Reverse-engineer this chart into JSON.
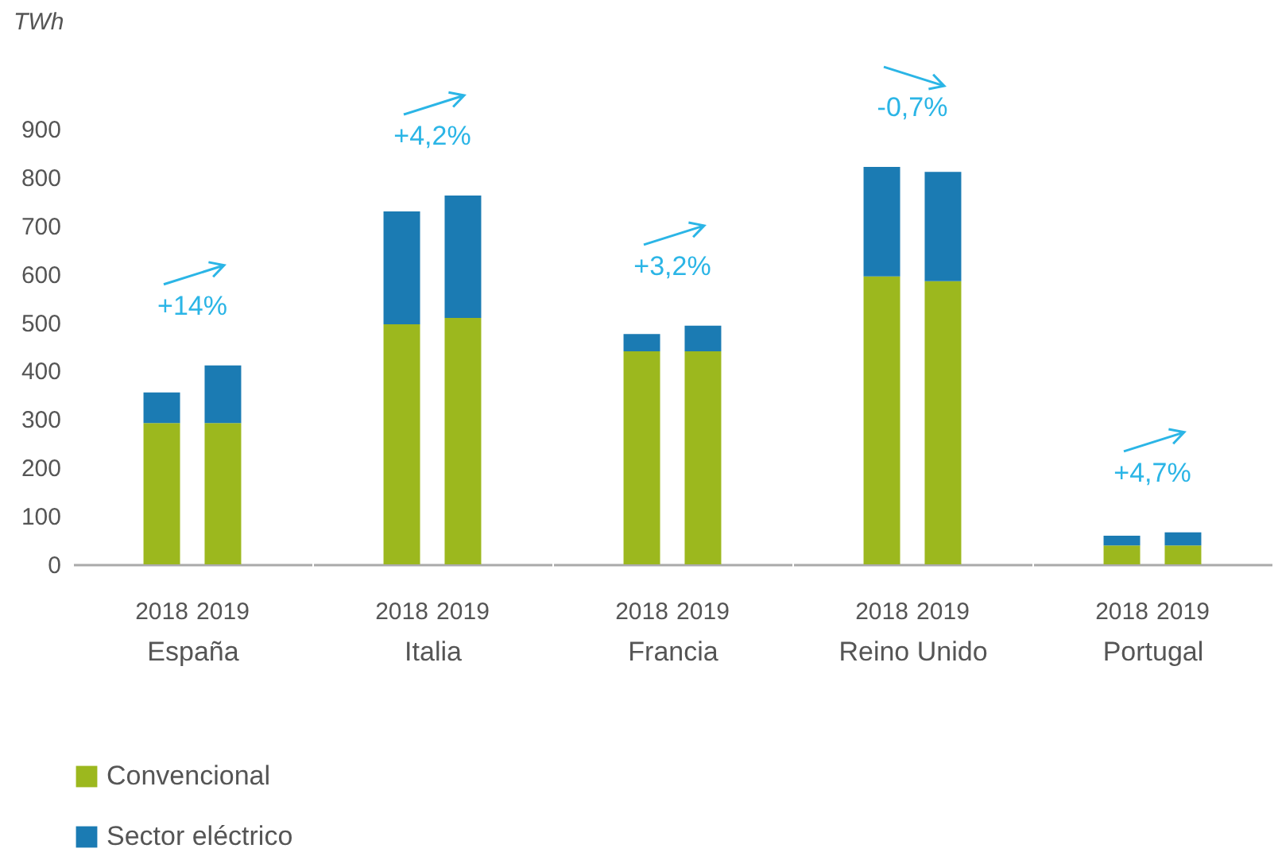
{
  "chart_data": [
    {
      "type": "bar",
      "stacked": true,
      "ylabel": "TWh",
      "xlabel": "España",
      "categories": [
        "2018",
        "2019"
      ],
      "ylim": [
        0,
        900
      ],
      "yticks": [
        0,
        100,
        200,
        300,
        400,
        500,
        600,
        700,
        800,
        900
      ],
      "legend": "bottom left",
      "annotations": [
        "+14%"
      ],
      "series": [
        {
          "name": "Convencional",
          "color": "#9cb81e",
          "values": [
            292,
            292
          ]
        },
        {
          "name": "Sector eléctrico",
          "color": "#1b7bb3",
          "values": [
            63,
            119
          ]
        }
      ]
    },
    {
      "type": "bar",
      "stacked": true,
      "xlabel": "Italia",
      "categories": [
        "2018",
        "2019"
      ],
      "ylim": [
        0,
        900
      ],
      "yticks": [
        0,
        100,
        200,
        300,
        400,
        500,
        600,
        700,
        800,
        900
      ],
      "tick_labels": "x",
      "legend": "bottom left",
      "annotations": [
        "+4,2%"
      ],
      "series": [
        {
          "name": "Convencional",
          "color": "#9cb81e",
          "values": [
            496,
            509
          ]
        },
        {
          "name": "Sector eléctrico",
          "color": "#1b7bb3",
          "values": [
            233,
            253
          ]
        }
      ]
    },
    {
      "type": "bar",
      "stacked": true,
      "xlabel": "Francia",
      "categories": [
        "2018",
        "2019"
      ],
      "ylim": [
        0,
        900
      ],
      "yticks": [
        0,
        100,
        200,
        300,
        400,
        500,
        600,
        700,
        800,
        900
      ],
      "tick_labels": "x",
      "legend": "bottom left",
      "annotations": [
        "+3,2%"
      ],
      "series": [
        {
          "name": "Convencional",
          "color": "#9cb81e",
          "values": [
            440,
            440
          ]
        },
        {
          "name": "Sector eléctrico",
          "color": "#1b7bb3",
          "values": [
            36,
            53
          ]
        }
      ]
    },
    {
      "type": "bar",
      "stacked": true,
      "xlabel": "Reino Unido",
      "categories": [
        "2018",
        "2019"
      ],
      "ylim": [
        0,
        900
      ],
      "yticks": [
        0,
        100,
        200,
        300,
        400,
        500,
        600,
        700,
        800,
        900
      ],
      "tick_labels": "x",
      "legend": "bottom left",
      "annotations": [
        "-0,7%"
      ],
      "series": [
        {
          "name": "Convencional",
          "color": "#9cb81e",
          "values": [
            595,
            585
          ]
        },
        {
          "name": "Sector eléctrico",
          "color": "#1b7bb3",
          "values": [
            226,
            226
          ]
        }
      ]
    },
    {
      "type": "bar",
      "stacked": true,
      "xlabel": "Portugal",
      "categories": [
        "2018",
        "2019"
      ],
      "ylim": [
        0,
        900
      ],
      "yticks": [
        0,
        100,
        200,
        300,
        400,
        500,
        600,
        700,
        800,
        900
      ],
      "tick_labels": "x",
      "legend": "bottom left",
      "annotations": [
        "+4,7%"
      ],
      "series": [
        {
          "name": "Convencional",
          "color": "#9cb81e",
          "values": [
            39,
            39
          ]
        },
        {
          "name": "Sector eléctrico",
          "color": "#1b7bb3",
          "values": [
            20,
            27
          ]
        }
      ]
    }
  ]
}
